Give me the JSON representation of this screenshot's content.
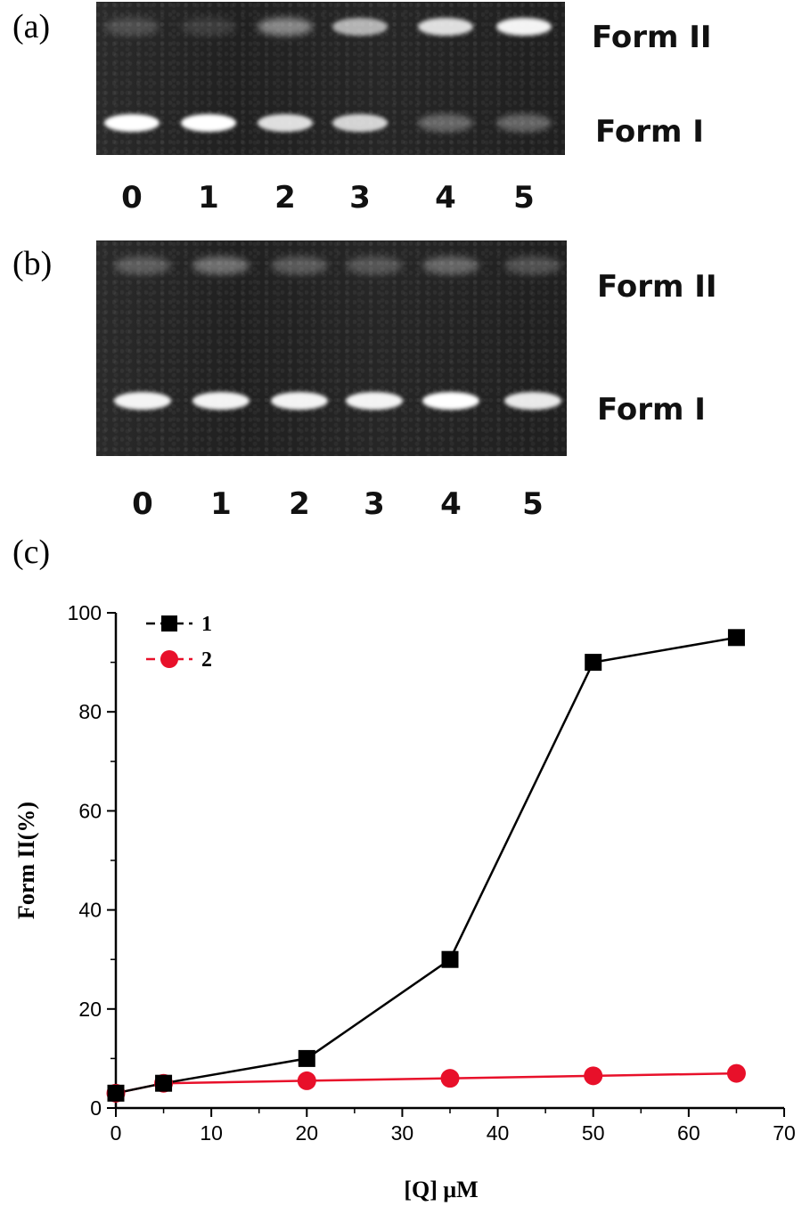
{
  "panels": {
    "a": {
      "label": "(a)",
      "lanes": [
        "0",
        "1",
        "2",
        "3",
        "4",
        "5"
      ],
      "form_upper": "Form II",
      "form_lower": "Form I",
      "form_ii_intensity": [
        0.18,
        0.12,
        0.45,
        0.65,
        0.85,
        0.95
      ],
      "form_i_intensity": [
        1.0,
        1.0,
        0.85,
        0.8,
        0.3,
        0.3
      ]
    },
    "b": {
      "label": "(b)",
      "lanes": [
        "0",
        "1",
        "2",
        "3",
        "4",
        "5"
      ],
      "form_upper": "Form II",
      "form_lower": "Form I",
      "form_ii_intensity": [
        0.25,
        0.35,
        0.25,
        0.22,
        0.3,
        0.22
      ],
      "form_i_intensity": [
        0.95,
        0.95,
        0.95,
        0.95,
        1.0,
        0.9
      ]
    },
    "c": {
      "label": "(c)"
    }
  },
  "chart_data": {
    "type": "line",
    "xlabel": "[Q] μM",
    "ylabel": "Form II(%)",
    "xlim": [
      0,
      70
    ],
    "ylim": [
      0,
      100
    ],
    "x_ticks": [
      "0",
      "10",
      "20",
      "30",
      "40",
      "50",
      "60",
      "70"
    ],
    "y_ticks": [
      "0",
      "20",
      "40",
      "60",
      "80",
      "100"
    ],
    "grid": false,
    "legend_position": "top-left",
    "series": [
      {
        "name": "1",
        "color": "#000000",
        "marker": "square",
        "x": [
          0,
          5,
          20,
          35,
          50,
          65
        ],
        "y": [
          3,
          5,
          10,
          30,
          90,
          95
        ]
      },
      {
        "name": "2",
        "color": "#e8102a",
        "marker": "circle",
        "x": [
          0,
          5,
          20,
          35,
          50,
          65
        ],
        "y": [
          3,
          5,
          5.5,
          6,
          6.5,
          7
        ]
      }
    ]
  }
}
